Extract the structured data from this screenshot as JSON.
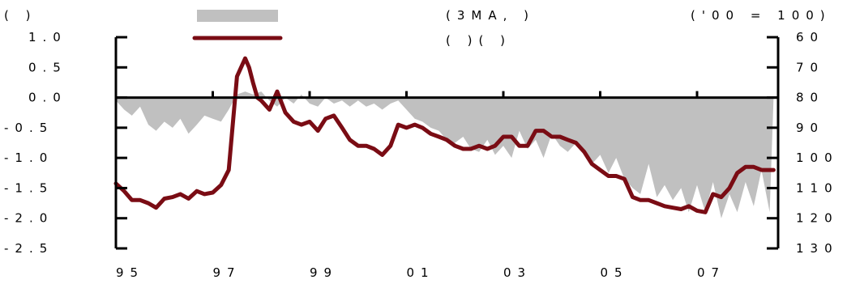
{
  "chart_data": {
    "type": "area+line",
    "header": {
      "left": "(          )",
      "mid": "(3MA,       )",
      "mid2": "(              )(       )",
      "right": "('00 = 100)"
    },
    "legend": [
      {
        "style": "area",
        "label": "",
        "color": "#c0c0c0"
      },
      {
        "style": "line",
        "label": "",
        "color": "#7a0c14"
      }
    ],
    "colors": {
      "area": "#c0c0c0",
      "line": "#7a0c14"
    },
    "x_ticks": [
      "95",
      "97",
      "99",
      "01",
      "03",
      "05",
      "07"
    ],
    "y_left": {
      "ticks": [
        "1.0",
        "0.5",
        "0.0",
        "-0.5",
        "-1.0",
        "-1.5",
        "-2.0",
        "-2.5"
      ],
      "range": [
        -2.5,
        1.0
      ]
    },
    "y_right": {
      "ticks": [
        "60",
        "70",
        "80",
        "90",
        "100",
        "110",
        "120",
        "130"
      ],
      "range": [
        60,
        130
      ],
      "inverted": true
    },
    "area_series": {
      "axis": "left",
      "x": [
        1995.0,
        1995.17,
        1995.33,
        1995.5,
        1995.67,
        1995.83,
        1996.0,
        1996.17,
        1996.33,
        1996.5,
        1996.67,
        1996.83,
        1997.0,
        1997.17,
        1997.33,
        1997.5,
        1997.67,
        1997.83,
        1998.0,
        1998.17,
        1998.33,
        1998.5,
        1998.67,
        1998.83,
        1999.0,
        1999.17,
        1999.33,
        1999.5,
        1999.67,
        1999.83,
        2000.0,
        2000.17,
        2000.33,
        2000.5,
        2000.67,
        2000.83,
        2001.0,
        2001.17,
        2001.33,
        2001.5,
        2001.67,
        2001.83,
        2002.0,
        2002.17,
        2002.33,
        2002.5,
        2002.67,
        2002.83,
        2003.0,
        2003.17,
        2003.33,
        2003.5,
        2003.67,
        2003.83,
        2004.0,
        2004.17,
        2004.33,
        2004.5,
        2004.67,
        2004.83,
        2005.0,
        2005.17,
        2005.33,
        2005.5,
        2005.67,
        2005.83,
        2006.0,
        2006.17,
        2006.33,
        2006.5,
        2006.67,
        2006.83,
        2007.0,
        2007.17,
        2007.33,
        2007.5,
        2007.67,
        2007.83,
        2008.0,
        2008.17,
        2008.33,
        2008.5,
        2008.58
      ],
      "values": [
        -0.05,
        -0.2,
        -0.3,
        -0.15,
        -0.45,
        -0.55,
        -0.4,
        -0.5,
        -0.35,
        -0.6,
        -0.45,
        -0.3,
        -0.35,
        -0.4,
        -0.2,
        0.05,
        0.1,
        0.05,
        0.1,
        -0.05,
        -0.15,
        0.0,
        -0.1,
        0.05,
        -0.1,
        -0.15,
        0.0,
        -0.1,
        -0.05,
        -0.15,
        -0.05,
        -0.15,
        -0.1,
        -0.2,
        -0.1,
        -0.05,
        -0.2,
        -0.35,
        -0.4,
        -0.5,
        -0.55,
        -0.7,
        -0.75,
        -0.65,
        -0.85,
        -0.9,
        -0.7,
        -0.95,
        -0.8,
        -1.0,
        -0.55,
        -0.85,
        -0.7,
        -1.0,
        -0.6,
        -0.8,
        -0.9,
        -0.75,
        -0.95,
        -1.1,
        -0.95,
        -1.25,
        -1.0,
        -1.35,
        -1.5,
        -1.6,
        -1.1,
        -1.65,
        -1.45,
        -1.7,
        -1.5,
        -1.9,
        -1.45,
        -1.9,
        -1.4,
        -2.0,
        -1.6,
        -1.9,
        -1.4,
        -1.8,
        -1.2,
        -1.9,
        0.0
      ]
    },
    "line_series": {
      "axis": "right",
      "x": [
        1995.0,
        1995.17,
        1995.33,
        1995.5,
        1995.67,
        1995.83,
        1996.0,
        1996.17,
        1996.33,
        1996.5,
        1996.67,
        1996.83,
        1997.0,
        1997.17,
        1997.33,
        1997.5,
        1997.67,
        1997.75,
        1997.83,
        1997.92,
        1998.0,
        1998.17,
        1998.33,
        1998.5,
        1998.67,
        1998.83,
        1999.0,
        1999.17,
        1999.33,
        1999.5,
        1999.67,
        1999.83,
        2000.0,
        2000.17,
        2000.33,
        2000.5,
        2000.67,
        2000.83,
        2001.0,
        2001.17,
        2001.33,
        2001.5,
        2001.67,
        2001.83,
        2002.0,
        2002.17,
        2002.33,
        2002.5,
        2002.67,
        2002.83,
        2003.0,
        2003.17,
        2003.33,
        2003.5,
        2003.67,
        2003.83,
        2004.0,
        2004.17,
        2004.33,
        2004.5,
        2004.67,
        2004.83,
        2005.0,
        2005.17,
        2005.33,
        2005.5,
        2005.67,
        2005.83,
        2006.0,
        2006.17,
        2006.33,
        2006.5,
        2006.67,
        2006.83,
        2007.0,
        2007.17,
        2007.33,
        2007.5,
        2007.67,
        2007.83,
        2008.0,
        2008.17,
        2008.33,
        2008.5,
        2008.58
      ],
      "values": [
        108.5,
        111,
        114,
        114,
        115,
        116.5,
        113.5,
        113,
        112,
        113.5,
        111,
        112,
        111.5,
        109,
        104,
        73,
        67,
        70,
        75,
        80,
        81,
        84,
        78,
        85,
        88,
        89,
        88,
        91,
        87,
        86,
        90,
        94,
        96,
        96,
        97,
        99,
        96,
        89,
        90,
        89,
        90,
        92,
        93,
        94,
        96,
        97,
        97,
        96,
        97,
        96,
        93,
        93,
        96,
        96,
        91,
        91,
        93,
        93,
        94,
        95,
        98,
        102,
        104,
        106,
        106,
        107,
        113,
        114,
        114,
        115,
        116,
        116.5,
        117,
        116,
        117.5,
        118,
        112,
        113,
        110,
        105,
        103,
        103,
        104,
        104,
        104
      ]
    }
  }
}
